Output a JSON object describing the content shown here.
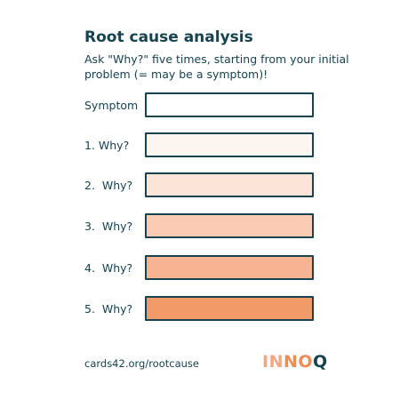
{
  "title": "Root cause analysis",
  "subtitle": "Ask \"Why?\" five times, starting from your initial problem (= may be a symptom)!",
  "rows": [
    {
      "label": "Symptom",
      "fill": "#ffffff"
    },
    {
      "label": "1. Why?",
      "fill": "#fdf5f0"
    },
    {
      "label": "2.  Why?",
      "fill": "#fde4d8"
    },
    {
      "label": "3.  Why?",
      "fill": "#fbcbb4"
    },
    {
      "label": "4.  Why?",
      "fill": "#f8b492"
    },
    {
      "label": "5.  Why?",
      "fill": "#f39a69"
    }
  ],
  "footer": {
    "link": "cards42.org/rootcause",
    "logo": {
      "part1": "IN",
      "part2": "NO",
      "part3": "Q"
    }
  },
  "colors": {
    "text": "#17424f",
    "border": "#17424f"
  }
}
